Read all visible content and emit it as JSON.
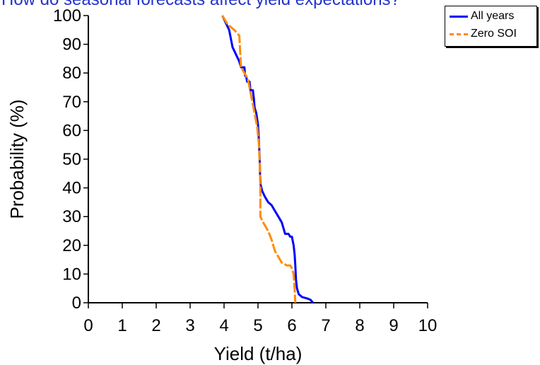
{
  "chart_data": {
    "type": "line",
    "title": "How do seasonal forecasts affect yield expectations?",
    "xlabel": "Yield (t/ha)",
    "ylabel": "Probability (%)",
    "xlim": [
      0,
      10
    ],
    "ylim": [
      0,
      100
    ],
    "x_ticks": [
      "0",
      "1",
      "2",
      "3",
      "4",
      "5",
      "6",
      "7",
      "8",
      "9",
      "10"
    ],
    "y_ticks": [
      "0",
      "10",
      "20",
      "30",
      "40",
      "50",
      "60",
      "70",
      "80",
      "90",
      "100"
    ],
    "legend_position": "top-right",
    "grid": false,
    "series": [
      {
        "name": "All years",
        "color": "#0000ff",
        "points": [
          [
            3.95,
            100
          ],
          [
            4.05,
            97.5
          ],
          [
            4.15,
            95
          ],
          [
            4.2,
            92
          ],
          [
            4.25,
            89
          ],
          [
            4.35,
            86.5
          ],
          [
            4.45,
            84
          ],
          [
            4.5,
            82
          ],
          [
            4.6,
            82
          ],
          [
            4.62,
            79
          ],
          [
            4.65,
            79
          ],
          [
            4.68,
            77
          ],
          [
            4.75,
            77
          ],
          [
            4.78,
            74
          ],
          [
            4.85,
            74
          ],
          [
            4.88,
            71
          ],
          [
            4.9,
            68
          ],
          [
            4.95,
            66
          ],
          [
            5.0,
            62
          ],
          [
            5.02,
            58
          ],
          [
            5.05,
            50
          ],
          [
            5.06,
            45
          ],
          [
            5.08,
            41
          ],
          [
            5.12,
            39
          ],
          [
            5.2,
            37
          ],
          [
            5.3,
            35
          ],
          [
            5.4,
            34
          ],
          [
            5.5,
            32
          ],
          [
            5.6,
            30
          ],
          [
            5.7,
            28
          ],
          [
            5.75,
            26
          ],
          [
            5.8,
            24
          ],
          [
            5.9,
            24
          ],
          [
            5.95,
            23
          ],
          [
            6.0,
            23
          ],
          [
            6.05,
            20
          ],
          [
            6.08,
            17
          ],
          [
            6.1,
            13
          ],
          [
            6.12,
            8
          ],
          [
            6.15,
            5
          ],
          [
            6.2,
            3
          ],
          [
            6.3,
            2
          ],
          [
            6.45,
            1.5
          ],
          [
            6.55,
            1
          ],
          [
            6.62,
            0
          ]
        ]
      },
      {
        "name": "Zero SOI",
        "color": "#ff8c00",
        "points": [
          [
            3.95,
            100
          ],
          [
            4.1,
            97
          ],
          [
            4.3,
            95
          ],
          [
            4.45,
            93
          ],
          [
            4.5,
            82
          ],
          [
            4.6,
            80
          ],
          [
            4.7,
            78
          ],
          [
            4.8,
            72
          ],
          [
            4.9,
            66
          ],
          [
            4.98,
            61
          ],
          [
            5.03,
            55
          ],
          [
            5.05,
            48
          ],
          [
            5.07,
            40
          ],
          [
            5.07,
            30
          ],
          [
            5.15,
            28
          ],
          [
            5.3,
            25
          ],
          [
            5.4,
            22
          ],
          [
            5.5,
            18
          ],
          [
            5.6,
            16
          ],
          [
            5.7,
            14
          ],
          [
            5.85,
            13
          ],
          [
            5.95,
            13
          ],
          [
            6.0,
            12
          ],
          [
            6.05,
            10
          ],
          [
            6.08,
            5
          ],
          [
            6.1,
            0
          ]
        ]
      }
    ]
  }
}
